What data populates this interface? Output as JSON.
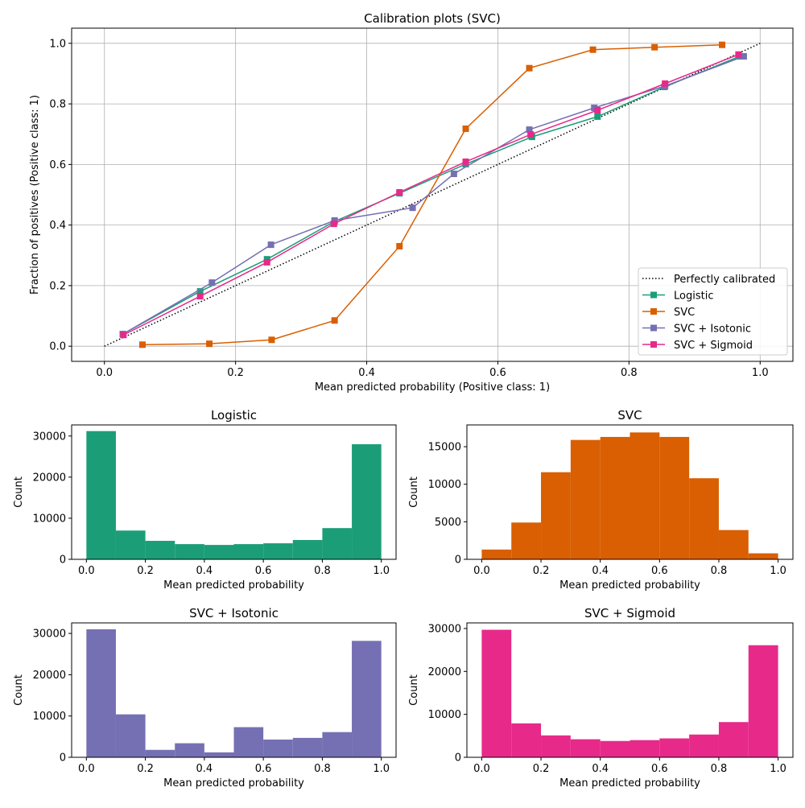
{
  "chart_data": [
    {
      "type": "line",
      "title": "Calibration plots (SVC)",
      "xlabel": "Mean predicted probability (Positive class: 1)",
      "ylabel": "Fraction of positives (Positive class: 1)",
      "xlim": [
        -0.05,
        1.05
      ],
      "ylim": [
        -0.05,
        1.05
      ],
      "xticks": [
        "0.0",
        "0.2",
        "0.4",
        "0.6",
        "0.8",
        "1.0"
      ],
      "yticks": [
        "0.0",
        "0.2",
        "0.4",
        "0.6",
        "0.8",
        "1.0"
      ],
      "grid": true,
      "legend_position": "lower-right",
      "reference": {
        "name": "Perfectly calibrated",
        "x": [
          0,
          1
        ],
        "y": [
          0,
          1
        ],
        "color": "#000000",
        "style": "dotted"
      },
      "series": [
        {
          "name": "Logistic",
          "color": "#1b9e77",
          "x": [
            0.028,
            0.146,
            0.248,
            0.351,
            0.45,
            0.551,
            0.652,
            0.752,
            0.854,
            0.969
          ],
          "y": [
            0.04,
            0.181,
            0.287,
            0.412,
            0.505,
            0.601,
            0.691,
            0.758,
            0.856,
            0.957
          ]
        },
        {
          "name": "SVC",
          "color": "#d95f02",
          "x": [
            0.058,
            0.16,
            0.255,
            0.351,
            0.45,
            0.551,
            0.648,
            0.745,
            0.839,
            0.942
          ],
          "y": [
            0.005,
            0.008,
            0.021,
            0.085,
            0.33,
            0.718,
            0.918,
            0.979,
            0.987,
            0.995
          ]
        },
        {
          "name": "SVC + Isotonic",
          "color": "#7570b3",
          "x": [
            0.028,
            0.164,
            0.254,
            0.351,
            0.47,
            0.533,
            0.648,
            0.747,
            0.855,
            0.975
          ],
          "y": [
            0.04,
            0.21,
            0.335,
            0.415,
            0.457,
            0.569,
            0.715,
            0.787,
            0.859,
            0.957
          ]
        },
        {
          "name": "SVC + Sigmoid",
          "color": "#e7298a",
          "x": [
            0.029,
            0.146,
            0.248,
            0.35,
            0.45,
            0.551,
            0.65,
            0.752,
            0.855,
            0.967
          ],
          "y": [
            0.037,
            0.165,
            0.277,
            0.404,
            0.508,
            0.609,
            0.699,
            0.779,
            0.867,
            0.963
          ]
        }
      ]
    },
    {
      "type": "bar",
      "title": "Logistic",
      "xlabel": "Mean predicted probability",
      "ylabel": "Count",
      "color": "#1b9e77",
      "bin_edges": [
        0,
        0.1,
        0.2,
        0.3,
        0.4,
        0.5,
        0.6,
        0.7,
        0.8,
        0.9,
        1.0
      ],
      "values": [
        31200,
        7000,
        4500,
        3700,
        3500,
        3700,
        3900,
        4700,
        7600,
        28000
      ],
      "xlim": [
        -0.05,
        1.05
      ],
      "ylim": [
        0,
        32700
      ],
      "xticks": [
        "0.0",
        "0.2",
        "0.4",
        "0.6",
        "0.8",
        "1.0"
      ],
      "yticks": [
        "0",
        "10000",
        "20000",
        "30000"
      ]
    },
    {
      "type": "bar",
      "title": "SVC",
      "xlabel": "Mean predicted probability",
      "ylabel": "Count",
      "color": "#d95f02",
      "bin_edges": [
        0,
        0.1,
        0.2,
        0.3,
        0.4,
        0.5,
        0.6,
        0.7,
        0.8,
        0.9,
        1.0
      ],
      "values": [
        1300,
        4900,
        11600,
        15900,
        16300,
        16900,
        16300,
        10800,
        3900,
        800
      ],
      "xlim": [
        -0.05,
        1.05
      ],
      "ylim": [
        0,
        17900
      ],
      "xticks": [
        "0.0",
        "0.2",
        "0.4",
        "0.6",
        "0.8",
        "1.0"
      ],
      "yticks": [
        "0",
        "5000",
        "10000",
        "15000"
      ]
    },
    {
      "type": "bar",
      "title": "SVC + Isotonic",
      "xlabel": "Mean predicted probability",
      "ylabel": "Count",
      "color": "#7570b3",
      "bin_edges": [
        0,
        0.1,
        0.2,
        0.3,
        0.4,
        0.5,
        0.6,
        0.7,
        0.8,
        0.9,
        1.0
      ],
      "values": [
        31000,
        10400,
        1800,
        3400,
        1200,
        7300,
        4300,
        4700,
        6100,
        28200
      ],
      "xlim": [
        -0.05,
        1.05
      ],
      "ylim": [
        0,
        32550
      ],
      "xticks": [
        "0.0",
        "0.2",
        "0.4",
        "0.6",
        "0.8",
        "1.0"
      ],
      "yticks": [
        "0",
        "10000",
        "20000",
        "30000"
      ]
    },
    {
      "type": "bar",
      "title": "SVC + Sigmoid",
      "xlabel": "Mean predicted probability",
      "ylabel": "Count",
      "color": "#e7298a",
      "bin_edges": [
        0,
        0.1,
        0.2,
        0.3,
        0.4,
        0.5,
        0.6,
        0.7,
        0.8,
        0.9,
        1.0
      ],
      "values": [
        29700,
        7900,
        5100,
        4200,
        3800,
        4000,
        4400,
        5300,
        8200,
        26100
      ],
      "xlim": [
        -0.05,
        1.05
      ],
      "ylim": [
        0,
        31300
      ],
      "xticks": [
        "0.0",
        "0.2",
        "0.4",
        "0.6",
        "0.8",
        "1.0"
      ],
      "yticks": [
        "0",
        "10000",
        "20000",
        "30000"
      ]
    }
  ]
}
